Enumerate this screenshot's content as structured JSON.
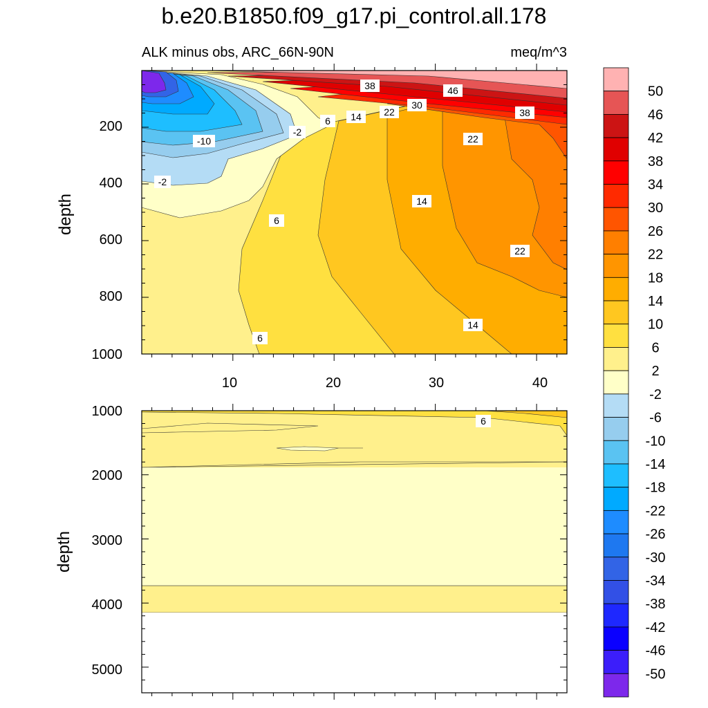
{
  "chart_data": {
    "type": "contour",
    "title": "b.e20.B1850.f09_g17.pi_control.all.178",
    "subtitle_left": "ALK minus obs, ARC_66N-90N",
    "subtitle_right": "meq/m^3",
    "colorbar": {
      "levels": [
        "50",
        "46",
        "42",
        "38",
        "34",
        "30",
        "26",
        "22",
        "18",
        "14",
        "10",
        "6",
        "2",
        "-2",
        "-6",
        "-10",
        "-14",
        "-18",
        "-22",
        "-26",
        "-30",
        "-34",
        "-38",
        "-42",
        "-46",
        "-50"
      ],
      "colors": [
        "#ffb2b2",
        "#e65555",
        "#cc1414",
        "#e00000",
        "#ff0000",
        "#ff2a00",
        "#ff5500",
        "#ff7f00",
        "#ff9500",
        "#ffad00",
        "#ffc720",
        "#ffe040",
        "#fff08c",
        "#ffffc8",
        "#b4dcf5",
        "#96cdee",
        "#5ac3f2",
        "#1ebeff",
        "#00aaff",
        "#1e8cff",
        "#1e78f0",
        "#3264e6",
        "#3250e6",
        "#1e28ff",
        "#0a00ff",
        "#3c1efa",
        "#7d28eb"
      ]
    },
    "upper_panel": {
      "ylabel": "depth",
      "ylim": [
        1000,
        0
      ],
      "xlim": [
        1,
        43
      ],
      "x_ticks": [
        "10",
        "20",
        "30",
        "40"
      ],
      "y_ticks": [
        "200",
        "400",
        "600",
        "800",
        "1000"
      ],
      "contour_labels": [
        "38",
        "46",
        "30",
        "22",
        "14",
        "6",
        "-2",
        "-10",
        "38",
        "22",
        "-2",
        "14",
        "6",
        "22",
        "14",
        "6"
      ]
    },
    "lower_panel": {
      "ylabel": "depth",
      "ylim": [
        5400,
        1000
      ],
      "xlim": [
        1,
        43
      ],
      "y_ticks": [
        "1000",
        "2000",
        "3000",
        "4000",
        "5000"
      ],
      "contour_labels": [
        "6"
      ]
    }
  }
}
